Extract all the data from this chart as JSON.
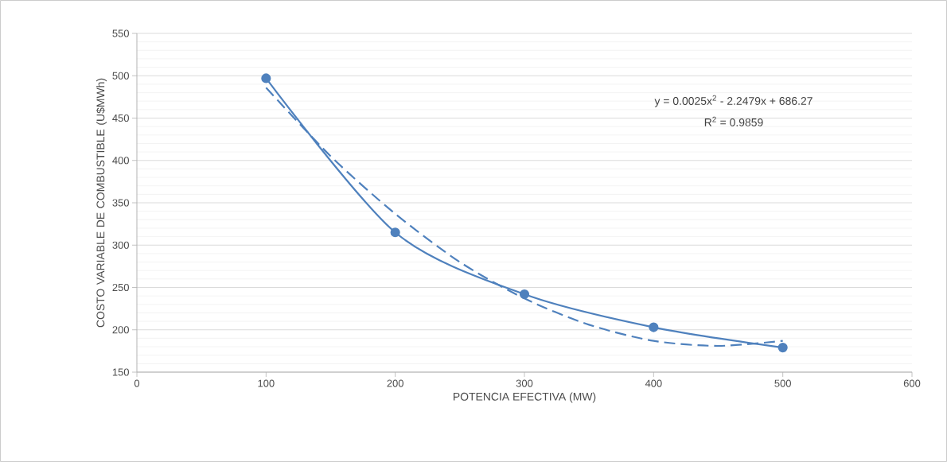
{
  "chart_data": {
    "type": "line",
    "xlabel": "POTENCIA EFECTIVA (MW)",
    "ylabel": "COSTO VARIABLE DE COMBUSTIBLE (U$MWh)",
    "xlim": [
      0,
      600
    ],
    "xticks": [
      0,
      100,
      200,
      300,
      400,
      500,
      600
    ],
    "ylim": [
      150,
      550
    ],
    "yticks": [
      150,
      200,
      250,
      300,
      350,
      400,
      450,
      500,
      550
    ],
    "grid": "y",
    "series": [
      {
        "color": "#4f81bd",
        "marker": "circle",
        "line_style": "solid",
        "x": [
          100,
          200,
          300,
          400,
          500
        ],
        "values": [
          497,
          315,
          242,
          203,
          179
        ]
      },
      {
        "color": "#4f81bd",
        "marker": "none",
        "line_style": "dashed",
        "x": [
          100,
          150,
          200,
          250,
          300,
          350,
          400,
          450,
          500
        ],
        "values": [
          486,
          405,
          337,
          280,
          237,
          206,
          187,
          181,
          187
        ]
      }
    ],
    "annotations": [
      "y = 0.0025x$^{2}$ - 2.2479x + 686.27",
      "R$^{2}$ = 0.9859"
    ]
  }
}
